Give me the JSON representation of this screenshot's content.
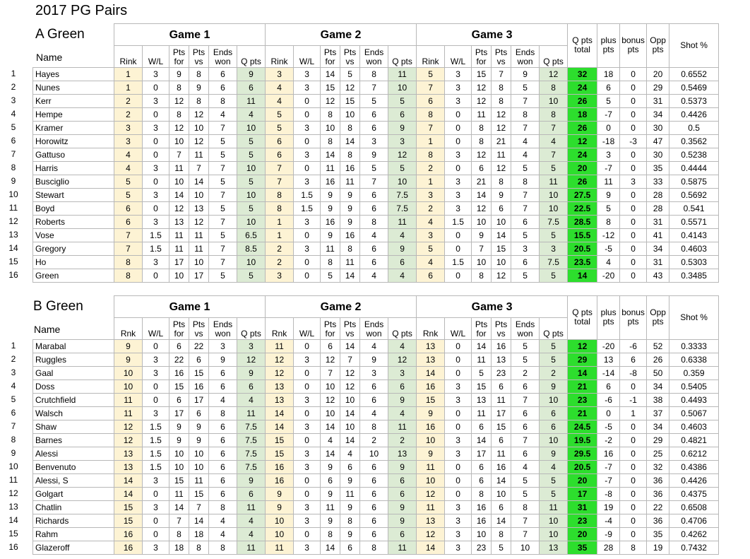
{
  "title": "2017 PG Pairs",
  "headers": {
    "name": "Name",
    "games": [
      "Game 1",
      "Game 2",
      "Game 3"
    ],
    "wl": "W/L",
    "pts_for": "Pts for",
    "pts_vs": "Pts vs",
    "ends_won": "Ends won",
    "q_pts": "Q pts",
    "q_total": "Q pts total",
    "plus": "plus pts",
    "bonus": "bonus pts",
    "opp": "Opp pts",
    "shot": "Shot %"
  },
  "sections": [
    {
      "name": "A Green",
      "rink_label": "Rink",
      "rows": [
        [
          "Hayes",
          "1",
          "3",
          "9",
          "8",
          "6",
          "9",
          "3",
          "3",
          "14",
          "5",
          "8",
          "11",
          "5",
          "3",
          "15",
          "7",
          "9",
          "12",
          "32",
          "18",
          "0",
          "20",
          "0.6552"
        ],
        [
          "Nunes",
          "1",
          "0",
          "8",
          "9",
          "6",
          "6",
          "4",
          "3",
          "15",
          "12",
          "7",
          "10",
          "7",
          "3",
          "12",
          "8",
          "5",
          "8",
          "24",
          "6",
          "0",
          "29",
          "0.5469"
        ],
        [
          "Kerr",
          "2",
          "3",
          "12",
          "8",
          "8",
          "11",
          "4",
          "0",
          "12",
          "15",
          "5",
          "5",
          "6",
          "3",
          "12",
          "8",
          "7",
          "10",
          "26",
          "5",
          "0",
          "31",
          "0.5373"
        ],
        [
          "Hempe",
          "2",
          "0",
          "8",
          "12",
          "4",
          "4",
          "5",
          "0",
          "8",
          "10",
          "6",
          "6",
          "8",
          "0",
          "11",
          "12",
          "8",
          "8",
          "18",
          "-7",
          "0",
          "34",
          "0.4426"
        ],
        [
          "Kramer",
          "3",
          "3",
          "12",
          "10",
          "7",
          "10",
          "5",
          "3",
          "10",
          "8",
          "6",
          "9",
          "7",
          "0",
          "8",
          "12",
          "7",
          "7",
          "26",
          "0",
          "0",
          "30",
          "0.5"
        ],
        [
          "Horowitz",
          "3",
          "0",
          "10",
          "12",
          "5",
          "5",
          "6",
          "0",
          "8",
          "14",
          "3",
          "3",
          "1",
          "0",
          "8",
          "21",
          "4",
          "4",
          "12",
          "-18",
          "-3",
          "47",
          "0.3562"
        ],
        [
          "Gattuso",
          "4",
          "0",
          "7",
          "11",
          "5",
          "5",
          "6",
          "3",
          "14",
          "8",
          "9",
          "12",
          "8",
          "3",
          "12",
          "11",
          "4",
          "7",
          "24",
          "3",
          "0",
          "30",
          "0.5238"
        ],
        [
          "Harris",
          "4",
          "3",
          "11",
          "7",
          "7",
          "10",
          "7",
          "0",
          "11",
          "16",
          "5",
          "5",
          "2",
          "0",
          "6",
          "12",
          "5",
          "5",
          "20",
          "-7",
          "0",
          "35",
          "0.4444"
        ],
        [
          "Busciglio",
          "5",
          "0",
          "10",
          "14",
          "5",
          "5",
          "7",
          "3",
          "16",
          "11",
          "7",
          "10",
          "1",
          "3",
          "21",
          "8",
          "8",
          "11",
          "26",
          "11",
          "3",
          "33",
          "0.5875"
        ],
        [
          "Stewart",
          "5",
          "3",
          "14",
          "10",
          "7",
          "10",
          "8",
          "1.5",
          "9",
          "9",
          "6",
          "7.5",
          "3",
          "3",
          "14",
          "9",
          "7",
          "10",
          "27.5",
          "9",
          "0",
          "28",
          "0.5692"
        ],
        [
          "Boyd",
          "6",
          "0",
          "12",
          "13",
          "5",
          "5",
          "8",
          "1.5",
          "9",
          "9",
          "6",
          "7.5",
          "2",
          "3",
          "12",
          "6",
          "7",
          "10",
          "22.5",
          "5",
          "0",
          "28",
          "0.541"
        ],
        [
          "Roberts",
          "6",
          "3",
          "13",
          "12",
          "7",
          "10",
          "1",
          "3",
          "16",
          "9",
          "8",
          "11",
          "4",
          "1.5",
          "10",
          "10",
          "6",
          "7.5",
          "28.5",
          "8",
          "0",
          "31",
          "0.5571"
        ],
        [
          "Vose",
          "7",
          "1.5",
          "11",
          "11",
          "5",
          "6.5",
          "1",
          "0",
          "9",
          "16",
          "4",
          "4",
          "3",
          "0",
          "9",
          "14",
          "5",
          "5",
          "15.5",
          "-12",
          "0",
          "41",
          "0.4143"
        ],
        [
          "Gregory",
          "7",
          "1.5",
          "11",
          "11",
          "7",
          "8.5",
          "2",
          "3",
          "11",
          "8",
          "6",
          "9",
          "5",
          "0",
          "7",
          "15",
          "3",
          "3",
          "20.5",
          "-5",
          "0",
          "34",
          "0.4603"
        ],
        [
          "Ho",
          "8",
          "3",
          "17",
          "10",
          "7",
          "10",
          "2",
          "0",
          "8",
          "11",
          "6",
          "6",
          "4",
          "1.5",
          "10",
          "10",
          "6",
          "7.5",
          "23.5",
          "4",
          "0",
          "31",
          "0.5303"
        ],
        [
          "Green",
          "8",
          "0",
          "10",
          "17",
          "5",
          "5",
          "3",
          "0",
          "5",
          "14",
          "4",
          "4",
          "6",
          "0",
          "8",
          "12",
          "5",
          "5",
          "14",
          "-20",
          "0",
          "43",
          "0.3485"
        ]
      ]
    },
    {
      "name": "B Green",
      "rink_label": "Rnk",
      "rows": [
        [
          "Marabal",
          "9",
          "0",
          "6",
          "22",
          "3",
          "3",
          "11",
          "0",
          "6",
          "14",
          "4",
          "4",
          "13",
          "0",
          "14",
          "16",
          "5",
          "5",
          "12",
          "-20",
          "-6",
          "52",
          "0.3333"
        ],
        [
          "Ruggles",
          "9",
          "3",
          "22",
          "6",
          "9",
          "12",
          "12",
          "3",
          "12",
          "7",
          "9",
          "12",
          "13",
          "0",
          "11",
          "13",
          "5",
          "5",
          "29",
          "13",
          "6",
          "26",
          "0.6338"
        ],
        [
          "Gaal",
          "10",
          "3",
          "16",
          "15",
          "6",
          "9",
          "12",
          "0",
          "7",
          "12",
          "3",
          "3",
          "14",
          "0",
          "5",
          "23",
          "2",
          "2",
          "14",
          "-14",
          "-8",
          "50",
          "0.359"
        ],
        [
          "Doss",
          "10",
          "0",
          "15",
          "16",
          "6",
          "6",
          "13",
          "0",
          "10",
          "12",
          "6",
          "6",
          "16",
          "3",
          "15",
          "6",
          "6",
          "9",
          "21",
          "6",
          "0",
          "34",
          "0.5405"
        ],
        [
          "Crutchfield",
          "11",
          "0",
          "6",
          "17",
          "4",
          "4",
          "13",
          "3",
          "12",
          "10",
          "6",
          "9",
          "15",
          "3",
          "13",
          "11",
          "7",
          "10",
          "23",
          "-6",
          "-1",
          "38",
          "0.4493"
        ],
        [
          "Walsch",
          "11",
          "3",
          "17",
          "6",
          "8",
          "11",
          "14",
          "0",
          "10",
          "14",
          "4",
          "4",
          "9",
          "0",
          "11",
          "17",
          "6",
          "6",
          "21",
          "0",
          "1",
          "37",
          "0.5067"
        ],
        [
          "Shaw",
          "12",
          "1.5",
          "9",
          "9",
          "6",
          "7.5",
          "14",
          "3",
          "14",
          "10",
          "8",
          "11",
          "16",
          "0",
          "6",
          "15",
          "6",
          "6",
          "24.5",
          "-5",
          "0",
          "34",
          "0.4603"
        ],
        [
          "Barnes",
          "12",
          "1.5",
          "9",
          "9",
          "6",
          "7.5",
          "15",
          "0",
          "4",
          "14",
          "2",
          "2",
          "10",
          "3",
          "14",
          "6",
          "7",
          "10",
          "19.5",
          "-2",
          "0",
          "29",
          "0.4821"
        ],
        [
          "Alessi",
          "13",
          "1.5",
          "10",
          "10",
          "6",
          "7.5",
          "15",
          "3",
          "14",
          "4",
          "10",
          "13",
          "9",
          "3",
          "17",
          "11",
          "6",
          "9",
          "29.5",
          "16",
          "0",
          "25",
          "0.6212"
        ],
        [
          "Benvenuto",
          "13",
          "1.5",
          "10",
          "10",
          "6",
          "7.5",
          "16",
          "3",
          "9",
          "6",
          "6",
          "9",
          "11",
          "0",
          "6",
          "16",
          "4",
          "4",
          "20.5",
          "-7",
          "0",
          "32",
          "0.4386"
        ],
        [
          "Alessi, S",
          "14",
          "3",
          "15",
          "11",
          "6",
          "9",
          "16",
          "0",
          "6",
          "9",
          "6",
          "6",
          "10",
          "0",
          "6",
          "14",
          "5",
          "5",
          "20",
          "-7",
          "0",
          "36",
          "0.4426"
        ],
        [
          "Golgart",
          "14",
          "0",
          "11",
          "15",
          "6",
          "6",
          "9",
          "0",
          "9",
          "11",
          "6",
          "6",
          "12",
          "0",
          "8",
          "10",
          "5",
          "5",
          "17",
          "-8",
          "0",
          "36",
          "0.4375"
        ],
        [
          "Chatlin",
          "15",
          "3",
          "14",
          "7",
          "8",
          "11",
          "9",
          "3",
          "11",
          "9",
          "6",
          "9",
          "11",
          "3",
          "16",
          "6",
          "8",
          "11",
          "31",
          "19",
          "0",
          "22",
          "0.6508"
        ],
        [
          "Richards",
          "15",
          "0",
          "7",
          "14",
          "4",
          "4",
          "10",
          "3",
          "9",
          "8",
          "6",
          "9",
          "13",
          "3",
          "16",
          "14",
          "7",
          "10",
          "23",
          "-4",
          "0",
          "36",
          "0.4706"
        ],
        [
          "Rahm",
          "16",
          "0",
          "8",
          "18",
          "4",
          "4",
          "10",
          "0",
          "8",
          "9",
          "6",
          "6",
          "12",
          "3",
          "10",
          "8",
          "7",
          "10",
          "20",
          "-9",
          "0",
          "35",
          "0.4262"
        ],
        [
          "Glazeroff",
          "16",
          "3",
          "18",
          "8",
          "8",
          "11",
          "11",
          "3",
          "14",
          "6",
          "8",
          "11",
          "14",
          "3",
          "23",
          "5",
          "10",
          "13",
          "35",
          "28",
          "8",
          "19",
          "0.7432"
        ]
      ]
    }
  ]
}
